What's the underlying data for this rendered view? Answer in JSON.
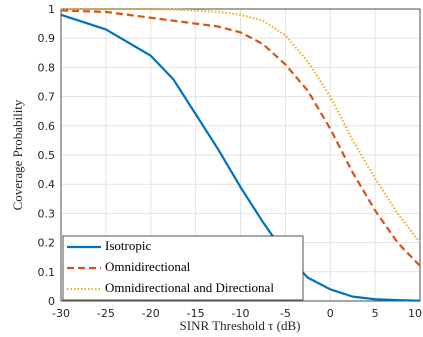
{
  "chart_data": {
    "type": "line",
    "x_label": "SINR Threshold τ (dB)",
    "y_label": "Coverage Probability",
    "x": [
      -30,
      -25,
      -20,
      -17.5,
      -15,
      -12.5,
      -10,
      -7.5,
      -5,
      -2.5,
      0,
      2.5,
      5,
      7.5,
      10
    ],
    "series": [
      {
        "name": "Isotropic",
        "color": "#0072BD",
        "dash": "solid",
        "values": [
          0.98,
          0.93,
          0.84,
          0.76,
          0.64,
          0.52,
          0.39,
          0.27,
          0.16,
          0.08,
          0.04,
          0.015,
          0.006,
          0.003,
          0.001
        ]
      },
      {
        "name": "Omnidirectional",
        "color": "#D95319",
        "dash": "dashed",
        "values": [
          0.995,
          0.99,
          0.97,
          0.96,
          0.95,
          0.94,
          0.92,
          0.88,
          0.81,
          0.72,
          0.59,
          0.44,
          0.31,
          0.2,
          0.12
        ]
      },
      {
        "name": "Omnidirectional and Directional",
        "color": "#EDB120",
        "dash": "dotted",
        "values": [
          1,
          1,
          1,
          0.998,
          0.995,
          0.99,
          0.98,
          0.96,
          0.91,
          0.82,
          0.7,
          0.55,
          0.42,
          0.3,
          0.2
        ]
      }
    ],
    "xlim": [
      -30,
      10
    ],
    "ylim": [
      0,
      1
    ],
    "xticks": [
      -30,
      -25,
      -20,
      -15,
      -10,
      -5,
      0,
      5,
      10
    ],
    "yticks": [
      0,
      0.1,
      0.2,
      0.3,
      0.4,
      0.5,
      0.6,
      0.7,
      0.8,
      0.9,
      1
    ],
    "grid": true,
    "legend": "lower-left"
  }
}
